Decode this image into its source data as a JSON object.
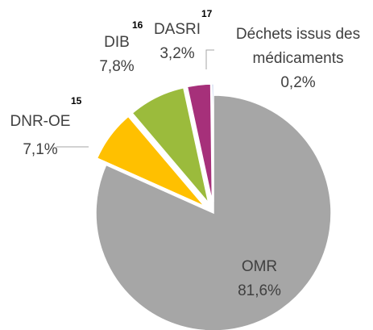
{
  "chart_data": {
    "type": "pie",
    "categories": [
      "OMR",
      "DNR-OE",
      "DIB",
      "DASRI",
      "Déchets issus des médicaments"
    ],
    "values": [
      81.6,
      7.1,
      7.8,
      3.2,
      0.2
    ],
    "value_labels": [
      "81,6%",
      "7,1%",
      "7,8%",
      "3,2%",
      "0,2%"
    ],
    "notes": [
      null,
      "15",
      "16",
      "17",
      null
    ],
    "colors": [
      "#a6a6a6",
      "#ffc000",
      "#9bbb3c",
      "#a6307a",
      "#4472c4"
    ]
  }
}
